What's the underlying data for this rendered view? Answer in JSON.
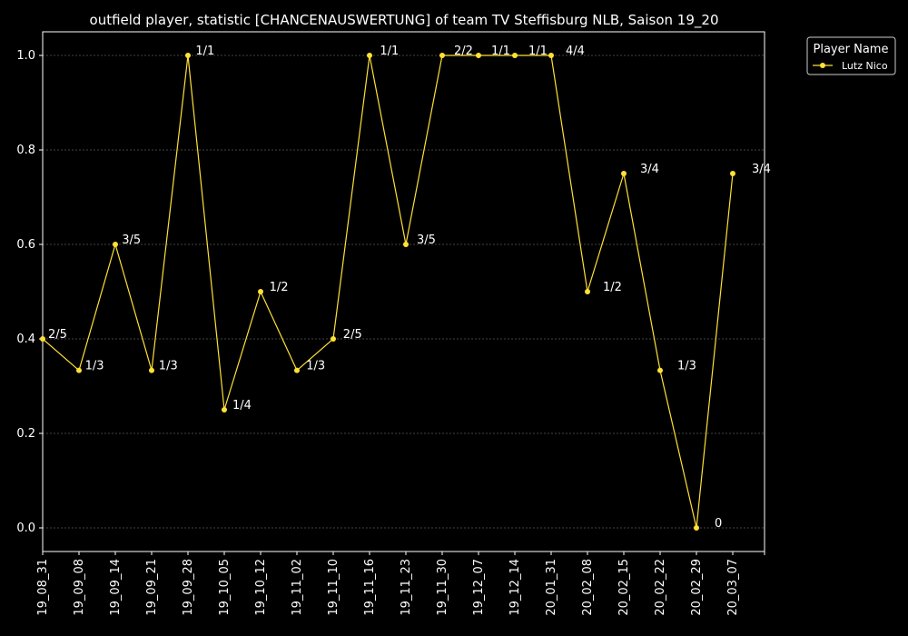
{
  "chart_data": {
    "type": "line",
    "title": "outfield player, statistic [CHANCENAUSWERTUNG] of team TV Steffisburg NLB, Saison 19_20",
    "xlabel": "",
    "ylabel": "",
    "categories": [
      "19_08_31",
      "19_09_08",
      "19_09_14",
      "19_09_21",
      "19_09_28",
      "19_10_05",
      "19_10_12",
      "19_11_02",
      "19_11_10",
      "19_11_16",
      "19_11_23",
      "19_11_30",
      "19_12_07",
      "19_12_14",
      "20_01_31",
      "20_02_08",
      "20_02_15",
      "20_02_22",
      "20_02_29",
      "20_03_07"
    ],
    "yticks": [
      "0.0",
      "0.2",
      "0.4",
      "0.6",
      "0.8",
      "1.0"
    ],
    "ylim": [
      -0.05,
      1.05
    ],
    "grid": true,
    "legend": {
      "title": "Player Name",
      "placement": "outside-top-right"
    },
    "series": [
      {
        "name": "Lutz Nico",
        "color": "#ffe135",
        "values": [
          0.4,
          0.3333,
          0.6,
          0.3333,
          1.0,
          0.25,
          0.5,
          0.3333,
          0.4,
          1.0,
          0.6,
          1.0,
          1.0,
          1.0,
          1.0,
          0.5,
          0.75,
          0.3333,
          0.0,
          0.75
        ],
        "labels": [
          "2/5",
          "1/3",
          "3/5",
          "1/3",
          "1/1",
          "1/4",
          "1/2",
          "1/3",
          "2/5",
          "1/1",
          "3/5",
          "2/2",
          "1/1",
          "1/1",
          "4/4",
          "1/2",
          "3/4",
          "1/3",
          "0",
          "3/4"
        ]
      }
    ]
  }
}
